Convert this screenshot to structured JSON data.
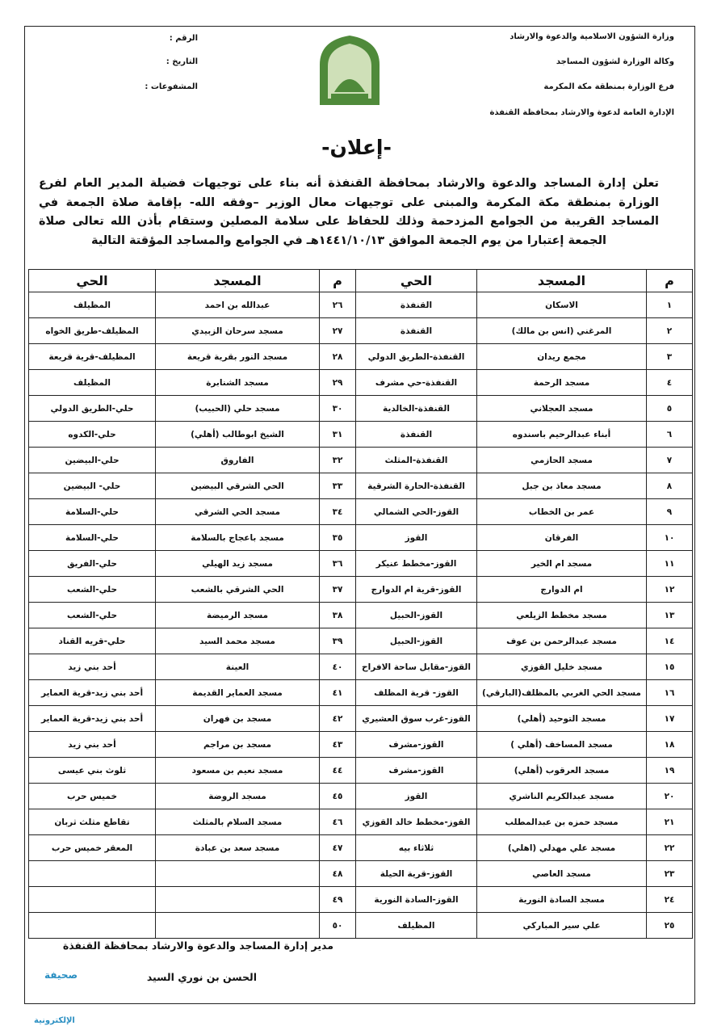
{
  "header": {
    "right": [
      "وزارة الشؤون الاسلامية والدعوة والارشاد",
      "وكالة الوزارة لشؤون المساجد",
      "فرع الوزارة بمنطقة مكة المكرمة",
      "الإدارة العامة لدعوة والارشاد بمحافظة القنفذة"
    ],
    "left": [
      "الرقم :",
      "التاريخ :",
      "المشفوعات :"
    ]
  },
  "title": "-إعلان-",
  "paragraph": "تعلن إدارة المساجد والدعوة والارشاد بمحافظة القنفذة أنه بناء على توجيهات فضيلة المدير العام لفرع الوزارة بمنطقة مكة المكرمة والمبنى على توجيهات معال الوزير –وفقه الله- بإقامة صلاة الجمعة في المساجد القريبة من الجوامع المزدحمة وذلك للحفاظ على سلامة المصلين وستقام بأذن الله تعالى صلاة الجمعة إعتبارا من يوم الجمعة الموافق ١٤٤١/١٠/١٣هـ في الجوامع والمساجد المؤقتة التالية",
  "table": {
    "headers": [
      "م",
      "المسجد",
      "الحي",
      "م",
      "المسجد",
      "الحي"
    ],
    "rows": [
      [
        "١",
        "الاسكان",
        "القنفذة",
        "٢٦",
        "عبدالله بن احمد",
        "المظيلف"
      ],
      [
        "٢",
        "المرغني (انس بن مالك)",
        "القنفذة",
        "٢٧",
        "مسجد سرحان الزبيدي",
        "المظيلف-طريق الخواه"
      ],
      [
        "٣",
        "مجمع ريدان",
        "القنفذة-الطريق الدولي",
        "٢٨",
        "مسجد النور بقرية قريعة",
        "المظيلف-قرية قريعة"
      ],
      [
        "٤",
        "مسجد الرحمة",
        "القنفذة-حي مشرف",
        "٢٩",
        "مسجد الشنابرة",
        "المظيلف"
      ],
      [
        "٥",
        "مسجد العجلاني",
        "القنفذة-الخالدية",
        "٣٠",
        "مسجد حلي (الحبيب)",
        "حلي-الطريق الدولي"
      ],
      [
        "٦",
        "أبناء عبدالرحيم باسندوه",
        "القنفذة",
        "٣١",
        "الشيخ ابوطالب (أهلي)",
        "حلي-الكدوه"
      ],
      [
        "٧",
        "مسجد الحازمي",
        "القنفذة-المثلث",
        "٣٢",
        "الفاروق",
        "حلي-البيضين"
      ],
      [
        "٨",
        "مسجد معاذ بن جبل",
        "القنفذة-الحارة الشرقية",
        "٣٣",
        "الحي الشرقي البيضين",
        "حلي- البيضين"
      ],
      [
        "٩",
        "عمر بن الخطاب",
        "القوز-الحي الشمالي",
        "٣٤",
        "مسجد الحي الشرقي",
        "حلي-السلامة"
      ],
      [
        "١٠",
        "الفرقان",
        "القوز",
        "٣٥",
        "مسجد باعجاج بالسلامة",
        "حلي-السلامة"
      ],
      [
        "١١",
        "مسجد ام الخير",
        "القوز-مخطط عنيكر",
        "٣٦",
        "مسجد زيد الهيلي",
        "حلي-الفريق"
      ],
      [
        "١٢",
        "ام الدوارج",
        "القوز-قرية ام الدوارج",
        "٣٧",
        "الحي الشرقي بالشعب",
        "حلي-الشعب"
      ],
      [
        "١٣",
        "مسجد مخطط الزيلعي",
        "القوز-الحبيل",
        "٣٨",
        "مسجد الرميضة",
        "حلي-الشعب"
      ],
      [
        "١٤",
        "مسجد عبدالرحمن بن عوف",
        "القوز-الحبيل",
        "٣٩",
        "مسجد محمد السيد",
        "حلي-قريه القناد"
      ],
      [
        "١٥",
        "مسجد خليل القوزي",
        "القوز-مقابل ساحة الافراح",
        "٤٠",
        "العينة",
        "أحد بني زيد"
      ],
      [
        "١٦",
        "مسجد الحي الغربي بالمظلف(البارقي)",
        "القوز- قرية المظلف",
        "٤١",
        "مسجد العماير القديمة",
        "أحد بني زيد-قرية العماير"
      ],
      [
        "١٧",
        "مسجد التوحيد (أهلي)",
        "القوز-غرب سوق العشيري",
        "٤٢",
        "مسجد بن فهران",
        "أحد بني زيد-قرية العماير"
      ],
      [
        "١٨",
        "مسجد المساخف (أهلي )",
        "القوز-مشرف",
        "٤٣",
        "مسجد بن مراجم",
        "أحد بني زيد"
      ],
      [
        "١٩",
        "مسجد العرقوب (أهلي)",
        "القوز-مشرف",
        "٤٤",
        "مسجد نعيم بن مسعود",
        "ثلوث بني عيسى"
      ],
      [
        "٢٠",
        "مسجد عبدالكريم الناشري",
        "القوز",
        "٤٥",
        "مسجد الروضة",
        "خميس حرب"
      ],
      [
        "٢١",
        "مسجد حمزه بن عبدالمطلب",
        "القوز-مخطط خالد القوزي",
        "٤٦",
        "مسجد السلام بالمثلث",
        "تقاطع مثلث ثربان"
      ],
      [
        "٢٢",
        "مسجد علي مهدلي (اهلي)",
        "ثلاثاء بيه",
        "٤٧",
        "مسجد سعد بن عبادة",
        "المعقر خميس حرب"
      ],
      [
        "٢٣",
        "مسجد العاصي",
        "القوز-قرية الحيلة",
        "٤٨",
        null,
        null
      ],
      [
        "٢٤",
        "مسجد السادة النورية",
        "القوز-السادة النورية",
        "٤٩",
        null,
        null
      ],
      [
        "٢٥",
        "علي سير المباركي",
        "المظيلف",
        "٥٠",
        null,
        null
      ]
    ]
  },
  "footer": {
    "position": "مدير إدارة المساجد والدعوة والارشاد بمحافظة القنفذة",
    "name": "الحسن بن نوري السيد"
  },
  "watermark": [
    "صحيفة",
    "الإلكترونية"
  ]
}
